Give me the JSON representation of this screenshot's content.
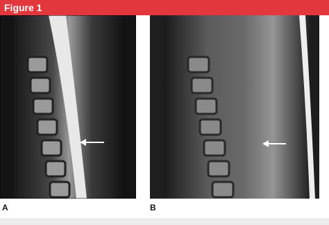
{
  "header": {
    "title": "Figure 1"
  },
  "panels": [
    {
      "label": "A"
    },
    {
      "label": "B"
    }
  ]
}
